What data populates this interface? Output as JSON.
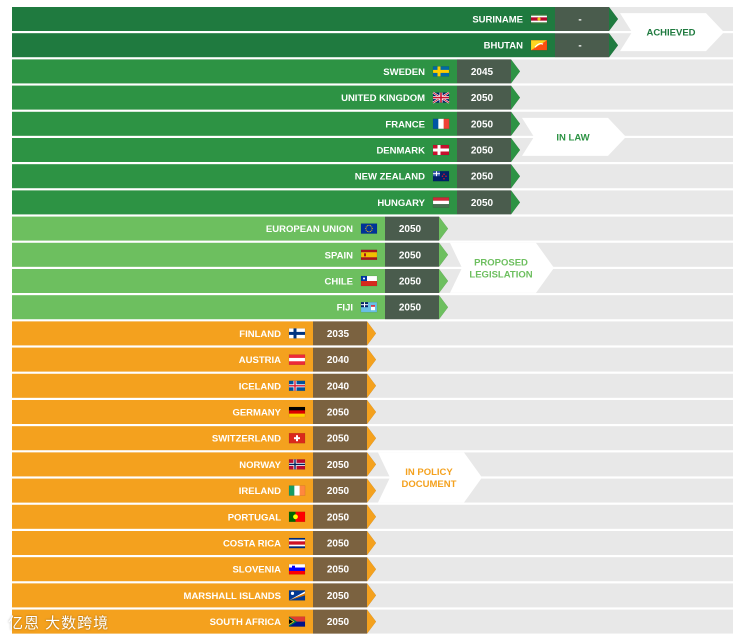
{
  "chart_data": {
    "type": "bar",
    "title": "",
    "xlabel": "",
    "ylabel": "",
    "colors": {
      "achieved": "#1f7a3f",
      "in_law": "#2d9344",
      "proposed": "#6dbf5f",
      "in_policy": "#f4a11e",
      "year_dark": "#4a5c4d",
      "year_brown": "#7b6240",
      "year_green": "#2a6b35",
      "track": "#e8e8e8",
      "label_achieved": "#1f7a3f",
      "label_in_law": "#2d9344",
      "label_proposed": "#6dbf5f",
      "label_in_policy": "#f4a11e"
    },
    "groups": [
      {
        "id": "achieved",
        "label_lines": [
          "ACHIEVED"
        ],
        "rows": [
          {
            "country": "SURINAME",
            "year": "-",
            "flag": "suriname"
          },
          {
            "country": "BHUTAN",
            "year": "-",
            "flag": "bhutan"
          }
        ]
      },
      {
        "id": "in_law",
        "label_lines": [
          "IN LAW"
        ],
        "rows": [
          {
            "country": "SWEDEN",
            "year": "2045",
            "flag": "sweden"
          },
          {
            "country": "UNITED KINGDOM",
            "year": "2050",
            "flag": "uk"
          },
          {
            "country": "FRANCE",
            "year": "2050",
            "flag": "france"
          },
          {
            "country": "DENMARK",
            "year": "2050",
            "flag": "denmark"
          },
          {
            "country": "NEW ZEALAND",
            "year": "2050",
            "flag": "nz"
          },
          {
            "country": "HUNGARY",
            "year": "2050",
            "flag": "hungary"
          }
        ]
      },
      {
        "id": "proposed",
        "label_lines": [
          "PROPOSED",
          "LEGISLATION"
        ],
        "rows": [
          {
            "country": "EUROPEAN UNION",
            "year": "2050",
            "flag": "eu"
          },
          {
            "country": "SPAIN",
            "year": "2050",
            "flag": "spain"
          },
          {
            "country": "CHILE",
            "year": "2050",
            "flag": "chile"
          },
          {
            "country": "FIJI",
            "year": "2050",
            "flag": "fiji"
          }
        ]
      },
      {
        "id": "in_policy",
        "label_lines": [
          "IN POLICY",
          "DOCUMENT"
        ],
        "rows": [
          {
            "country": "FINLAND",
            "year": "2035",
            "flag": "finland"
          },
          {
            "country": "AUSTRIA",
            "year": "2040",
            "flag": "austria"
          },
          {
            "country": "ICELAND",
            "year": "2040",
            "flag": "iceland"
          },
          {
            "country": "GERMANY",
            "year": "2050",
            "flag": "germany"
          },
          {
            "country": "SWITZERLAND",
            "year": "2050",
            "flag": "switzerland"
          },
          {
            "country": "NORWAY",
            "year": "2050",
            "flag": "norway"
          },
          {
            "country": "IRELAND",
            "year": "2050",
            "flag": "ireland"
          },
          {
            "country": "PORTUGAL",
            "year": "2050",
            "flag": "portugal"
          },
          {
            "country": "COSTA RICA",
            "year": "2050",
            "flag": "costarica"
          },
          {
            "country": "SLOVENIA",
            "year": "2050",
            "flag": "slovenia"
          },
          {
            "country": "MARSHALL ISLANDS",
            "year": "2050",
            "flag": "marshall"
          },
          {
            "country": "SOUTH AFRICA",
            "year": "2050",
            "flag": "southafrica"
          }
        ]
      }
    ]
  },
  "watermark": "亿恩 大数跨境"
}
